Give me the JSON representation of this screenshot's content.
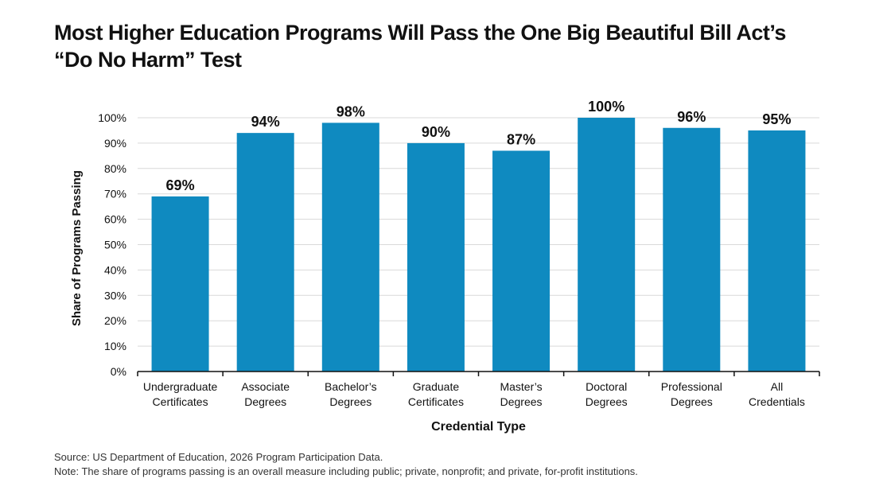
{
  "title_line1": "Most Higher Education Programs Will Pass the One Big Beautiful Bill Act’s",
  "title_line2": "“Do No Harm” Test",
  "source": "Source: US Department of Education, 2026 Program Participation Data.",
  "note": "Note: The share of programs passing is an overall measure including public; private, nonprofit; and private, for-profit institutions.",
  "colors": {
    "bar": "#0f8ac0",
    "grid": "#d9d9d9",
    "axis": "#111111"
  },
  "chart_data": {
    "type": "bar",
    "title": "Most Higher Education Programs Will Pass the One Big Beautiful Bill Act’s “Do No Harm” Test",
    "xlabel": "Credential Type",
    "ylabel": "Share of Programs Passing",
    "ylim": [
      0,
      100
    ],
    "yticks": [
      "0%",
      "10%",
      "20%",
      "30%",
      "40%",
      "50%",
      "60%",
      "70%",
      "80%",
      "90%",
      "100%"
    ],
    "grid": true,
    "categories": [
      [
        "Undergraduate",
        "Certificates"
      ],
      [
        "Associate",
        "Degrees"
      ],
      [
        "Bachelor’s",
        "Degrees"
      ],
      [
        "Graduate",
        "Certificates"
      ],
      [
        "Master’s",
        "Degrees"
      ],
      [
        "Doctoral",
        "Degrees"
      ],
      [
        "Professional",
        "Degrees"
      ],
      [
        "All",
        "Credentials"
      ]
    ],
    "values": [
      69,
      94,
      98,
      90,
      87,
      100,
      96,
      95
    ],
    "value_labels": [
      "69%",
      "94%",
      "98%",
      "90%",
      "87%",
      "100%",
      "96%",
      "95%"
    ]
  }
}
